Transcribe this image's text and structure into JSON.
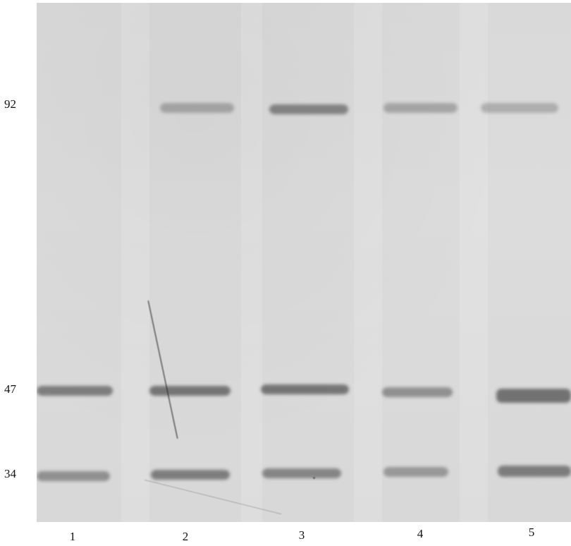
{
  "markers": {
    "m92": "92",
    "m47": "47",
    "m34": "34"
  },
  "lanes": {
    "l1": "1",
    "l2": "2",
    "l3": "3",
    "l4": "4",
    "l5": "5"
  },
  "colors": {
    "gel_background": "#dfdfdf",
    "band": "#5a5a5a",
    "label_text": "#111111"
  }
}
